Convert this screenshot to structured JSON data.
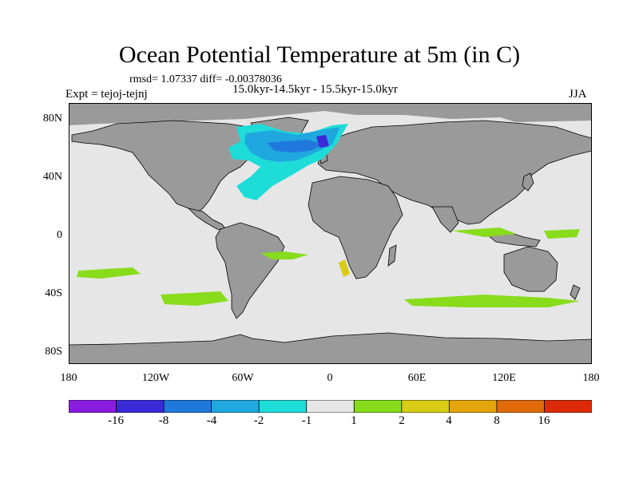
{
  "title": "Ocean Potential Temperature at 5m (in C)",
  "stats": "rmsd= 1.07337 diff= -0.00378036",
  "experiment": "Expt = tejoj-tejnj",
  "period": "15.0kyr-14.5kyr - 15.5kyr-15.0kyr",
  "season": "JJA",
  "y_axis_labels": [
    "80N",
    "40N",
    "0",
    "40S",
    "80S"
  ],
  "x_axis_labels": [
    "180",
    "120W",
    "60W",
    "0",
    "60E",
    "120E",
    "180"
  ],
  "colorbar": {
    "labels": [
      "-16",
      "-8",
      "-4",
      "-2",
      "-1",
      "1",
      "2",
      "4",
      "8",
      "16"
    ],
    "colors": [
      "#8a1ce0",
      "#3a2ad8",
      "#1f78dc",
      "#1fa8e0",
      "#1edcd8",
      "#e6e6e6",
      "#88dc1c",
      "#d8cc14",
      "#e4a40c",
      "#e06a0a",
      "#dc2a08"
    ]
  },
  "map_colors": {
    "ocean_neutral": "#e6e6e6",
    "land": "#9a9a9a",
    "coastline": "#000000"
  }
}
